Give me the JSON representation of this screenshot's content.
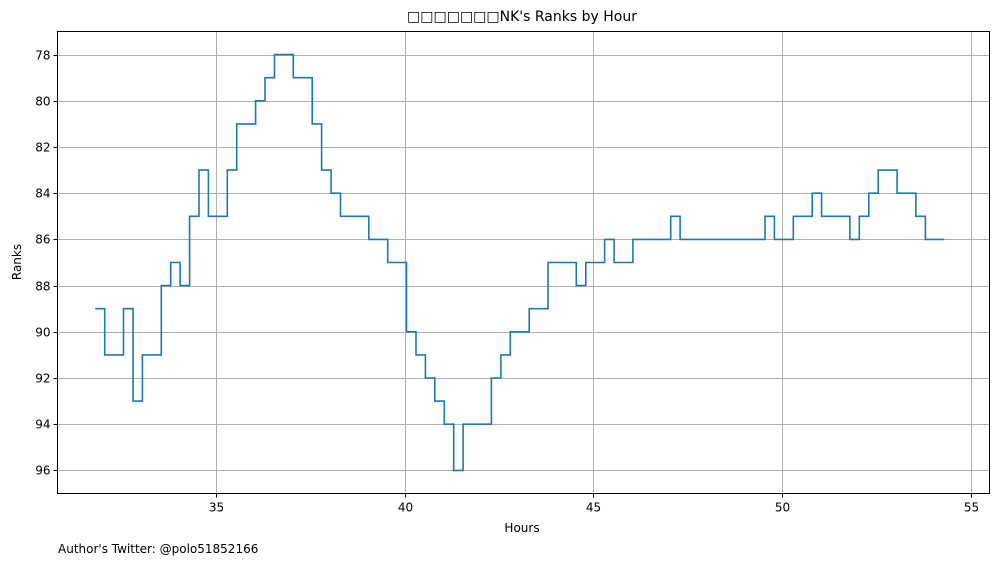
{
  "chart_data": {
    "type": "line",
    "title": "□□□□□□□NK's Ranks by Hour",
    "xlabel": "Hours",
    "ylabel": "Ranks",
    "xlim": [
      30.8,
      55.5
    ],
    "ylim": [
      97,
      77
    ],
    "y_inverted": true,
    "x_ticks": [
      35,
      40,
      45,
      50,
      55
    ],
    "y_ticks": [
      78,
      80,
      82,
      84,
      86,
      88,
      90,
      92,
      94,
      96
    ],
    "grid": true,
    "line_color": "#1f77b4",
    "step": "post",
    "series": [
      {
        "x": [
          31.8,
          32.05,
          32.55,
          32.8,
          33.05,
          33.3,
          33.55,
          33.8,
          34.05,
          34.3,
          34.55,
          34.8,
          35.3,
          35.55,
          35.8,
          36.05,
          36.3,
          36.55,
          36.8,
          37.05,
          37.55,
          37.8,
          38.05,
          38.3,
          38.55,
          38.8,
          39.05,
          39.3,
          39.55,
          39.8,
          40.05,
          40.3,
          40.55,
          40.8,
          41.05,
          41.3,
          41.55,
          41.8,
          42.05,
          42.3,
          42.55,
          42.8,
          43.05,
          43.3,
          43.55,
          43.8,
          44.05,
          44.3,
          44.55,
          44.8,
          45.05,
          45.3,
          45.55,
          45.8,
          46.05,
          46.3,
          46.55,
          46.8,
          47.05,
          47.3,
          47.55,
          47.8,
          48.05,
          48.3,
          48.55,
          48.8,
          49.05,
          49.3,
          49.55,
          49.8,
          50.05,
          50.3,
          50.55,
          50.8,
          51.05,
          51.3,
          51.55,
          51.8,
          52.05,
          52.3,
          52.55,
          52.8,
          53.05,
          53.3,
          53.55,
          53.8,
          54.05,
          54.3
        ],
        "y": [
          89,
          91,
          89,
          93,
          91,
          91,
          88,
          87,
          88,
          85,
          83,
          85,
          83,
          81,
          81,
          80,
          79,
          78,
          78,
          79,
          81,
          83,
          84,
          85,
          85,
          85,
          86,
          86,
          87,
          87,
          90,
          91,
          92,
          93,
          94,
          96,
          94,
          94,
          94,
          92,
          91,
          90,
          90,
          89,
          89,
          87,
          87,
          87,
          88,
          87,
          87,
          86,
          87,
          87,
          86,
          86,
          86,
          86,
          85,
          86,
          86,
          86,
          86,
          86,
          86,
          86,
          86,
          86,
          85,
          86,
          86,
          85,
          85,
          84,
          85,
          85,
          85,
          86,
          85,
          84,
          83,
          83,
          84,
          84,
          85,
          86,
          86,
          86
        ]
      }
    ]
  },
  "footer": {
    "author_text": "Author's Twitter: @polo51852166"
  }
}
